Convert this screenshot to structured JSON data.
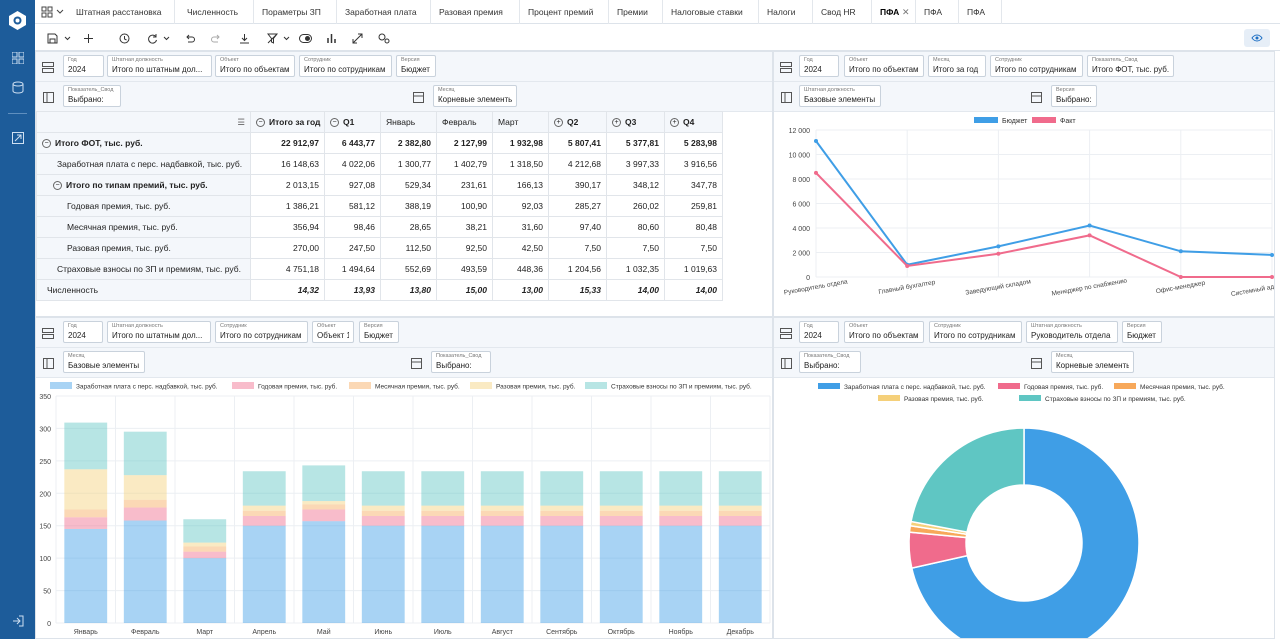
{
  "tabs": [
    "Штатная расстановка",
    "Численность",
    "Пораметры ЗП",
    "Заработная плата",
    "Разовая премия",
    "Процент премий",
    "Премии",
    "Налоговые ставки",
    "Налоги",
    "Свод HR",
    "ПФА",
    "ПФА",
    "ПФА"
  ],
  "tab_close": "✕",
  "colors": {
    "blue": "#3f9ee6",
    "pink": "#f06b8c",
    "orange": "#f7a85a",
    "yellow": "#f5d07a",
    "teal": "#5fc6c3",
    "rail": "#1d5c9a"
  },
  "panel_tl": {
    "filters1": [
      {
        "label": "Год",
        "value": "2024"
      },
      {
        "label": "Штатная должность",
        "value": "Итого по штатным дол..."
      },
      {
        "label": "Объект",
        "value": "Итого по объектам"
      },
      {
        "label": "Сотрудник",
        "value": "Итого по сотрудникам"
      },
      {
        "label": "Версия",
        "value": "Бюджет"
      }
    ],
    "filters2": [
      {
        "label": "Показатель_Свод",
        "value": "Выбрано:"
      },
      {
        "label": "Месяц",
        "value": "Корневые элементы"
      }
    ],
    "table": {
      "headers": [
        "Итого за год",
        "Q1",
        "Январь",
        "Февраль",
        "Март",
        "Q2",
        "Q3",
        "Q4"
      ],
      "rows": [
        {
          "label": "Итого ФОТ, тыс. руб.",
          "values": [
            "22 912,97",
            "6 443,77",
            "2 382,80",
            "2 127,99",
            "1 932,98",
            "5 807,41",
            "5 377,81",
            "5 283,98"
          ]
        },
        {
          "label": "Заработная плата с перс. надбавкой, тыс. руб.",
          "values": [
            "16 148,63",
            "4 022,06",
            "1 300,77",
            "1 402,79",
            "1 318,50",
            "4 212,68",
            "3 997,33",
            "3 916,56"
          ]
        },
        {
          "label": "Итого по типам премий, тыс. руб.",
          "values": [
            "2 013,15",
            "927,08",
            "529,34",
            "231,61",
            "166,13",
            "390,17",
            "348,12",
            "347,78"
          ]
        },
        {
          "label": "Годовая премия, тыс. руб.",
          "values": [
            "1 386,21",
            "581,12",
            "388,19",
            "100,90",
            "92,03",
            "285,27",
            "260,02",
            "259,81"
          ]
        },
        {
          "label": "Месячная премия, тыс. руб.",
          "values": [
            "356,94",
            "98,46",
            "28,65",
            "38,21",
            "31,60",
            "97,40",
            "80,60",
            "80,48"
          ]
        },
        {
          "label": "Разовая премия, тыс. руб.",
          "values": [
            "270,00",
            "247,50",
            "112,50",
            "92,50",
            "42,50",
            "7,50",
            "7,50",
            "7,50"
          ]
        },
        {
          "label": "Страховые взносы по ЗП и премиям, тыс. руб.",
          "values": [
            "4 751,18",
            "1 494,64",
            "552,69",
            "493,59",
            "448,36",
            "1 204,56",
            "1 032,35",
            "1 019,63"
          ]
        },
        {
          "label": "Численность",
          "values": [
            "14,32",
            "13,93",
            "13,80",
            "15,00",
            "13,00",
            "15,33",
            "14,00",
            "14,00"
          ]
        }
      ]
    }
  },
  "panel_tr": {
    "filters1": [
      {
        "label": "Год",
        "value": "2024"
      },
      {
        "label": "Объект",
        "value": "Итого по объектам"
      },
      {
        "label": "Месяц",
        "value": "Итого за год"
      },
      {
        "label": "Сотрудник",
        "value": "Итого по сотрудникам"
      },
      {
        "label": "Показатель_Свод",
        "value": "Итого ФОТ, тыс. руб."
      }
    ],
    "filters2": [
      {
        "label": "Штатная должность",
        "value": "Базовые элементы"
      },
      {
        "label": "Версия",
        "value": "Выбрано:"
      }
    ]
  },
  "panel_bl": {
    "filters1": [
      {
        "label": "Год",
        "value": "2024"
      },
      {
        "label": "Штатная должность",
        "value": "Итого по штатным дол..."
      },
      {
        "label": "Сотрудник",
        "value": "Итого по сотрудникам"
      },
      {
        "label": "Объект",
        "value": "Объект 1"
      },
      {
        "label": "Версия",
        "value": "Бюджет"
      }
    ],
    "filters2": [
      {
        "label": "Месяц",
        "value": "Базовые элементы"
      },
      {
        "label": "Показатель_Свод",
        "value": "Выбрано:"
      }
    ]
  },
  "panel_br": {
    "filters1": [
      {
        "label": "Год",
        "value": "2024"
      },
      {
        "label": "Объект",
        "value": "Итого по объектам"
      },
      {
        "label": "Сотрудник",
        "value": "Итого по сотрудникам"
      },
      {
        "label": "Штатная должность",
        "value": "Руководитель отдела"
      },
      {
        "label": "Версия",
        "value": "Бюджет"
      }
    ],
    "filters2": [
      {
        "label": "Показатель_Свод",
        "value": "Выбрано:"
      },
      {
        "label": "Месяц",
        "value": "Корневые элементы"
      }
    ]
  },
  "chart_data": [
    {
      "type": "line",
      "categories": [
        "Руководитель отдела",
        "Главный бухгалтер",
        "Заведующий складом",
        "Менеджер по снабжению",
        "Офис-менеджер",
        "Системный администратор"
      ],
      "series": [
        {
          "name": "Бюджет",
          "values": [
            11100,
            1000,
            2500,
            4200,
            2100,
            1800
          ]
        },
        {
          "name": "Факт",
          "values": [
            8500,
            900,
            1900,
            3400,
            0,
            0
          ]
        }
      ],
      "ylim": [
        0,
        12000
      ],
      "yticks": [
        0,
        2000,
        4000,
        6000,
        8000,
        10000,
        12000
      ],
      "legend": "top",
      "grid": true
    },
    {
      "type": "bar",
      "stacked": true,
      "categories": [
        "Январь",
        "Февраль",
        "Март",
        "Апрель",
        "Май",
        "Июнь",
        "Июль",
        "Август",
        "Сентябрь",
        "Октябрь",
        "Ноябрь",
        "Декабрь"
      ],
      "series": [
        {
          "name": "Заработная плата с перс. надбавкой, тыс. руб.",
          "values": [
            145,
            158,
            100,
            150,
            157,
            150,
            150,
            150,
            150,
            150,
            150,
            150
          ]
        },
        {
          "name": "Годовая премия, тыс. руб.",
          "values": [
            18,
            20,
            10,
            15,
            18,
            15,
            15,
            15,
            15,
            15,
            15,
            15
          ]
        },
        {
          "name": "Месячная премия, тыс. руб.",
          "values": [
            12,
            12,
            8,
            8,
            8,
            8,
            8,
            8,
            8,
            8,
            8,
            8
          ]
        },
        {
          "name": "Разовая премия, тыс. руб.",
          "values": [
            62,
            38,
            6,
            8,
            5,
            8,
            8,
            8,
            8,
            8,
            8,
            8
          ]
        },
        {
          "name": "Страховые взносы по ЗП и премиям, тыс. руб.",
          "values": [
            72,
            67,
            36,
            53,
            55,
            53,
            53,
            53,
            53,
            53,
            53,
            53
          ]
        }
      ],
      "ylim": [
        0,
        350
      ],
      "yticks": [
        0,
        50,
        100,
        150,
        200,
        250,
        300,
        350
      ],
      "legend": "top",
      "grid": true
    },
    {
      "type": "pie",
      "donut": true,
      "labels": [
        "Заработная плата с перс. надбавкой, тыс. руб.",
        "Годовая премия, тыс. руб.",
        "Месячная премия, тыс. руб.",
        "Разовая премия, тыс. руб.",
        "Страховые взносы по ЗП и премиям, тыс. руб."
      ],
      "values": [
        71.5,
        5.0,
        0.9,
        0.6,
        22.0
      ],
      "legend": "top"
    }
  ]
}
